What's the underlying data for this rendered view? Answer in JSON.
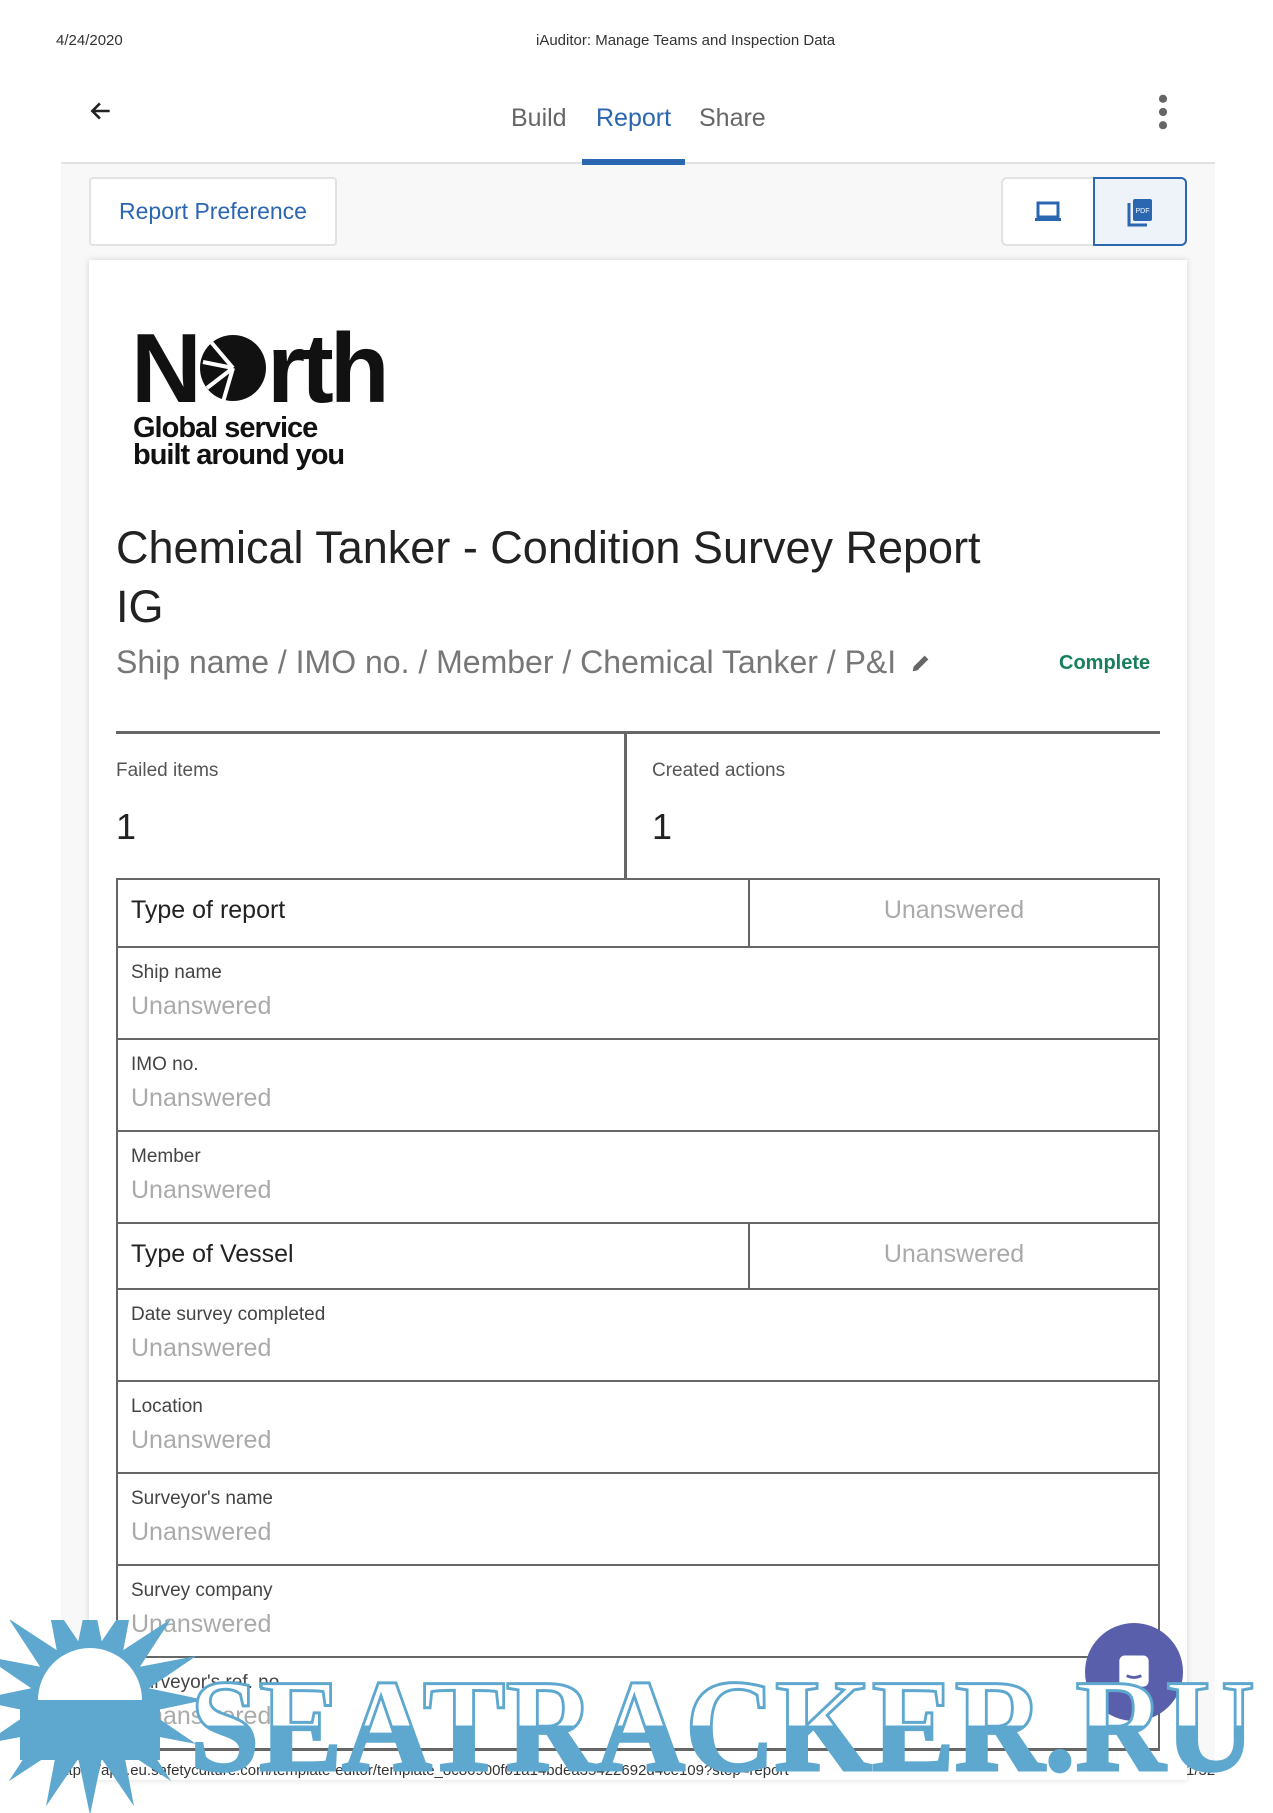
{
  "print_header": {
    "date": "4/24/2020",
    "title": "iAuditor: Manage Teams and Inspection Data"
  },
  "nav": {
    "back_icon": "arrow-left-icon",
    "tabs": [
      {
        "label": "Build"
      },
      {
        "label": "Report",
        "active": true
      },
      {
        "label": "Share"
      }
    ],
    "more_icon": "more-vertical-icon"
  },
  "toolbar": {
    "report_preference": "Report Preference",
    "views": [
      {
        "icon": "laptop-icon"
      },
      {
        "icon": "pdf-icon",
        "active": true,
        "glyph": "PDF"
      }
    ]
  },
  "logo": {
    "name": "North",
    "tagline_1": "Global service",
    "tagline_2": "built around you"
  },
  "report": {
    "title_line1": "Chemical Tanker - Condition Survey Report",
    "title_line2": "IG",
    "subtitle": "Ship name / IMO no. / Member / Chemical Tanker / P&I",
    "status": "Complete",
    "status_color": "#17805a"
  },
  "summary": [
    {
      "label": "Failed items",
      "value": "1"
    },
    {
      "label": "Created actions",
      "value": "1"
    }
  ],
  "table": [
    {
      "type": "split",
      "question": "Type of report",
      "answer": "Unanswered"
    },
    {
      "type": "stack",
      "question": "Ship name",
      "answer": "Unanswered"
    },
    {
      "type": "stack",
      "question": "IMO no.",
      "answer": "Unanswered"
    },
    {
      "type": "stack",
      "question": "Member",
      "answer": "Unanswered"
    },
    {
      "type": "split",
      "question": "Type of Vessel",
      "answer": "Unanswered"
    },
    {
      "type": "stack",
      "question": "Date survey completed",
      "answer": "Unanswered"
    },
    {
      "type": "stack",
      "question": "Location",
      "answer": "Unanswered"
    },
    {
      "type": "stack",
      "question": "Surveyor's name",
      "answer": "Unanswered"
    },
    {
      "type": "stack",
      "question": "Survey company",
      "answer": "Unanswered"
    },
    {
      "type": "stack",
      "question": "Surveyor's ref. no.",
      "answer": "Unanswered"
    }
  ],
  "print_footer": {
    "url": "https://app.eu.safetyculture.com/template-editor/template_8c86900f01a14bdea35422692d4ce109?step=report",
    "page": "1/32"
  },
  "chat": {
    "icon": "chat-icon"
  },
  "watermark": {
    "text": "SEATRACKER.RU",
    "color": "#5ea8cf"
  }
}
